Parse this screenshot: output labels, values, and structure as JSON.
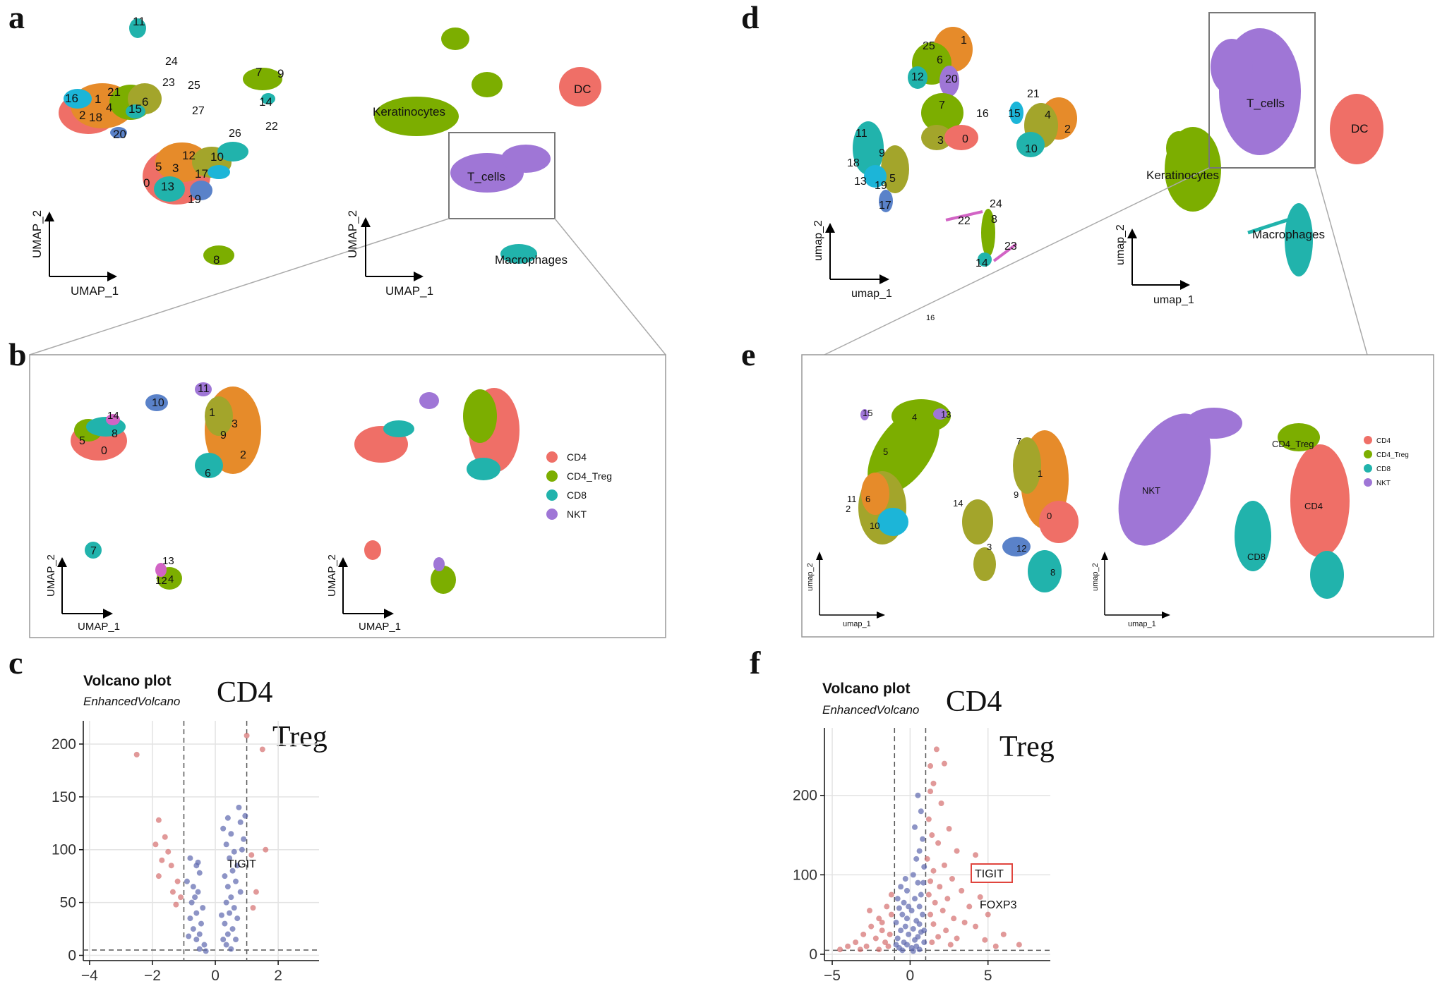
{
  "panel_letters": [
    "a",
    "b",
    "c",
    "d",
    "e",
    "f"
  ],
  "colors": {
    "red": "#EF6F67",
    "green": "#7CAE00",
    "orange": "#E68B2A",
    "olive": "#A3A52B",
    "teal": "#21B3AC",
    "cyan": "#1CB5D8",
    "blue": "#5A82C9",
    "purple": "#9F76D6",
    "magenta": "#D264C5",
    "volcano_blue": "#5C67AE",
    "volcano_red": "#D46E6E"
  },
  "axes": {
    "umap1_upper": "UMAP_1",
    "umap2_upper": "UMAP_2",
    "umap1_lower": "umap_1",
    "umap2_lower": "umap_2"
  },
  "panel_a": {
    "clusters": [
      "0",
      "1",
      "2",
      "3",
      "4",
      "5",
      "6",
      "7",
      "8",
      "9",
      "10",
      "11",
      "12",
      "13",
      "14",
      "15",
      "16",
      "17",
      "18",
      "19",
      "20",
      "21",
      "22",
      "23",
      "24",
      "25",
      "26",
      "27"
    ],
    "cell_types": [
      "Keratinocytes",
      "DC",
      "T_cells",
      "Macrophages"
    ]
  },
  "panel_b": {
    "clusters": [
      "0",
      "1",
      "2",
      "3",
      "4",
      "5",
      "6",
      "7",
      "8",
      "9",
      "10",
      "11",
      "12",
      "13",
      "14"
    ],
    "legend": [
      "CD4",
      "CD4_Treg",
      "CD8",
      "NKT"
    ]
  },
  "panel_d": {
    "clusters": [
      "0",
      "1",
      "2",
      "3",
      "4",
      "5",
      "6",
      "7",
      "8",
      "9",
      "10",
      "11",
      "12",
      "13",
      "14",
      "15",
      "16",
      "17",
      "18",
      "19",
      "20",
      "21",
      "22",
      "23",
      "24",
      "25",
      "16"
    ],
    "cell_types": [
      "T_cells",
      "DC",
      "Keratinocytes",
      "Macrophages"
    ]
  },
  "panel_e": {
    "clusters": [
      "0",
      "1",
      "2",
      "3",
      "4",
      "5",
      "6",
      "7",
      "8",
      "9",
      "10",
      "11",
      "12",
      "13",
      "14",
      "15"
    ],
    "cell_types": [
      "NKT",
      "CD4_Treg",
      "CD4",
      "CD8"
    ],
    "legend": [
      "CD4",
      "CD4_Treg",
      "CD8",
      "NKT"
    ]
  },
  "panel_c": {
    "title": "Volcano plot",
    "subtitle": "EnhancedVolcano",
    "comparison_top": "CD4",
    "comparison_bottom": "Treg",
    "gene_label": "TIGIT"
  },
  "panel_f": {
    "title": "Volcano plot",
    "subtitle": "EnhancedVolcano",
    "comparison_top": "CD4",
    "comparison_bottom": "Treg",
    "gene_label_boxed": "TIGIT",
    "gene_label": "FOXP3"
  },
  "chart_data": [
    {
      "type": "scatter",
      "panel": "c",
      "title": "Volcano plot",
      "subtitle": "EnhancedVolcano",
      "xlim": [
        -4.2,
        3.3
      ],
      "ylim": [
        -5,
        222
      ],
      "xticks": [
        -4,
        -2,
        0,
        2
      ],
      "yticks": [
        0,
        50,
        100,
        150,
        200
      ],
      "fc_cutoff": [
        -1,
        1
      ],
      "p_cutoff": 5,
      "grid": true,
      "series": [
        {
          "name": "significant",
          "points": [
            [
              -2.5,
              190
            ],
            [
              1.5,
              195
            ],
            [
              1.0,
              208
            ],
            [
              -1.8,
              128
            ],
            [
              -1.6,
              112
            ],
            [
              -1.9,
              105
            ],
            [
              -1.5,
              98
            ],
            [
              -1.7,
              90
            ],
            [
              -1.4,
              85
            ],
            [
              -1.2,
              70
            ],
            [
              -1.35,
              60
            ],
            [
              -1.1,
              55
            ],
            [
              -1.25,
              48
            ],
            [
              1.3,
              60
            ],
            [
              1.2,
              45
            ],
            [
              1.15,
              95
            ],
            [
              1.6,
              100
            ],
            [
              -1.8,
              75
            ]
          ]
        },
        {
          "name": "ns",
          "points": [
            [
              -0.8,
              92
            ],
            [
              -0.6,
              85
            ],
            [
              -0.5,
              78
            ],
            [
              -0.9,
              70
            ],
            [
              -0.7,
              65
            ],
            [
              -0.55,
              60
            ],
            [
              -0.65,
              55
            ],
            [
              -0.75,
              50
            ],
            [
              -0.4,
              45
            ],
            [
              -0.6,
              40
            ],
            [
              -0.8,
              35
            ],
            [
              -0.45,
              30
            ],
            [
              -0.7,
              25
            ],
            [
              -0.5,
              20
            ],
            [
              -0.6,
              15
            ],
            [
              -0.35,
              10
            ],
            [
              -0.5,
              6
            ],
            [
              -0.3,
              4
            ],
            [
              -0.85,
              18
            ],
            [
              -0.55,
              88
            ],
            [
              0.25,
              120
            ],
            [
              0.4,
              130
            ],
            [
              0.5,
              115
            ],
            [
              0.35,
              105
            ],
            [
              0.6,
              98
            ],
            [
              0.45,
              92
            ],
            [
              0.7,
              85
            ],
            [
              0.55,
              80
            ],
            [
              0.3,
              75
            ],
            [
              0.65,
              70
            ],
            [
              0.4,
              65
            ],
            [
              0.8,
              60
            ],
            [
              0.5,
              55
            ],
            [
              0.35,
              50
            ],
            [
              0.6,
              45
            ],
            [
              0.45,
              40
            ],
            [
              0.7,
              35
            ],
            [
              0.3,
              30
            ],
            [
              0.55,
              25
            ],
            [
              0.4,
              20
            ],
            [
              0.65,
              15
            ],
            [
              0.35,
              10
            ],
            [
              0.5,
              6
            ],
            [
              0.75,
              140
            ],
            [
              0.8,
              126
            ],
            [
              0.9,
              110
            ],
            [
              0.85,
              100
            ],
            [
              0.2,
              38
            ],
            [
              0.25,
              15
            ],
            [
              0.95,
              132
            ]
          ]
        }
      ]
    },
    {
      "type": "scatter",
      "panel": "f",
      "title": "Volcano plot",
      "subtitle": "EnhancedVolcano",
      "xlim": [
        -5.5,
        9
      ],
      "ylim": [
        -8,
        285
      ],
      "xticks": [
        -5,
        0,
        5
      ],
      "yticks": [
        0,
        100,
        200
      ],
      "fc_cutoff": [
        -1,
        1
      ],
      "p_cutoff": 5,
      "grid": true,
      "series": [
        {
          "name": "significant",
          "points": [
            [
              1.7,
              258
            ],
            [
              1.3,
              237
            ],
            [
              2.2,
              240
            ],
            [
              1.5,
              215
            ],
            [
              1.3,
              205
            ],
            [
              2.0,
              190
            ],
            [
              1.2,
              170
            ],
            [
              2.5,
              158
            ],
            [
              1.4,
              150
            ],
            [
              1.8,
              140
            ],
            [
              3.0,
              130
            ],
            [
              1.1,
              120
            ],
            [
              2.2,
              112
            ],
            [
              4.2,
              125
            ],
            [
              1.5,
              105
            ],
            [
              1.3,
              92
            ],
            [
              2.7,
              95
            ],
            [
              1.9,
              85
            ],
            [
              3.3,
              80
            ],
            [
              1.2,
              75
            ],
            [
              2.4,
              70
            ],
            [
              4.5,
              72
            ],
            [
              1.6,
              65
            ],
            [
              3.8,
              60
            ],
            [
              2.1,
              55
            ],
            [
              5.0,
              50
            ],
            [
              1.3,
              50
            ],
            [
              2.8,
              45
            ],
            [
              3.5,
              40
            ],
            [
              1.5,
              38
            ],
            [
              4.2,
              35
            ],
            [
              2.3,
              30
            ],
            [
              6.0,
              25
            ],
            [
              1.8,
              22
            ],
            [
              3.0,
              20
            ],
            [
              4.8,
              18
            ],
            [
              7.0,
              12
            ],
            [
              5.5,
              10
            ],
            [
              1.4,
              15
            ],
            [
              2.6,
              12
            ],
            [
              -1.5,
              60
            ],
            [
              -2.0,
              45
            ],
            [
              -1.2,
              50
            ],
            [
              -2.5,
              35
            ],
            [
              -1.8,
              30
            ],
            [
              -3.0,
              25
            ],
            [
              -1.3,
              25
            ],
            [
              -2.2,
              20
            ],
            [
              -3.5,
              15
            ],
            [
              -1.6,
              15
            ],
            [
              -4.0,
              10
            ],
            [
              -2.8,
              10
            ],
            [
              -1.4,
              10
            ],
            [
              -4.5,
              6
            ],
            [
              -2.0,
              6
            ],
            [
              -3.2,
              6
            ],
            [
              -1.8,
              40
            ],
            [
              -1.2,
              75
            ],
            [
              -2.6,
              55
            ]
          ]
        },
        {
          "name": "ns",
          "points": [
            [
              0.5,
              200
            ],
            [
              0.7,
              180
            ],
            [
              0.3,
              160
            ],
            [
              0.8,
              145
            ],
            [
              0.6,
              130
            ],
            [
              0.4,
              120
            ],
            [
              0.9,
              110
            ],
            [
              0.2,
              100
            ],
            [
              -0.3,
              95
            ],
            [
              -0.6,
              85
            ],
            [
              0.5,
              90
            ],
            [
              -0.2,
              80
            ],
            [
              0.7,
              75
            ],
            [
              -0.8,
              70
            ],
            [
              0.3,
              70
            ],
            [
              -0.4,
              65
            ],
            [
              0.6,
              60
            ],
            [
              -0.7,
              58
            ],
            [
              0.1,
              55
            ],
            [
              -0.5,
              50
            ],
            [
              0.8,
              50
            ],
            [
              -0.2,
              45
            ],
            [
              0.4,
              42
            ],
            [
              -0.9,
              40
            ],
            [
              0.6,
              38
            ],
            [
              -0.3,
              35
            ],
            [
              0.2,
              32
            ],
            [
              -0.6,
              30
            ],
            [
              0.7,
              28
            ],
            [
              -0.1,
              25
            ],
            [
              0.5,
              22
            ],
            [
              -0.8,
              20
            ],
            [
              0.3,
              18
            ],
            [
              -0.4,
              15
            ],
            [
              0.9,
              15
            ],
            [
              -0.2,
              12
            ],
            [
              0.4,
              10
            ],
            [
              -0.7,
              8
            ],
            [
              0.1,
              8
            ],
            [
              0.6,
              6
            ],
            [
              -0.5,
              5
            ],
            [
              0.2,
              4
            ],
            [
              -0.9,
              12
            ],
            [
              0.9,
              30
            ],
            [
              -0.1,
              60
            ],
            [
              0.85,
              90
            ]
          ]
        }
      ]
    }
  ]
}
